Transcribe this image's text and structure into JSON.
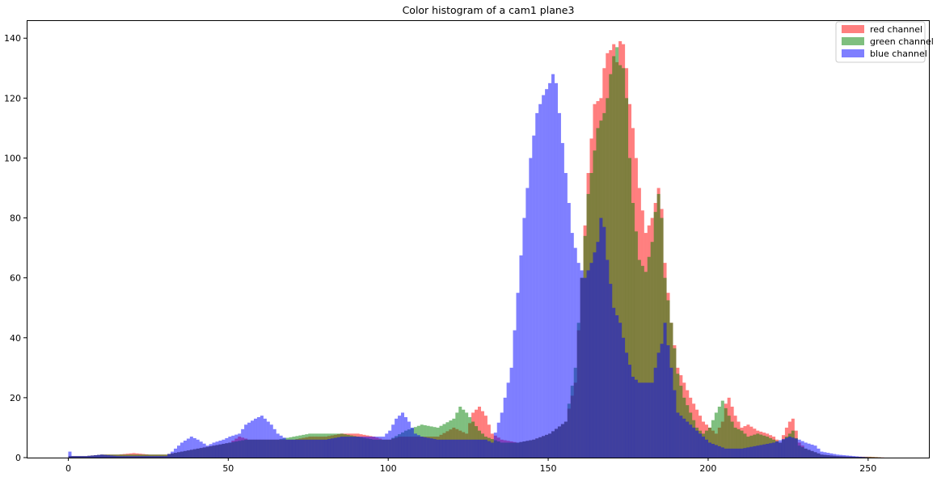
{
  "chart_data": {
    "type": "histogram",
    "title": "Color histogram of a cam1 plane3",
    "xlabel": "",
    "ylabel": "",
    "xlim": [
      -13,
      269
    ],
    "ylim": [
      0,
      146
    ],
    "xticks": [
      0,
      50,
      100,
      150,
      200,
      250
    ],
    "yticks": [
      0,
      20,
      40,
      60,
      80,
      100,
      120,
      140
    ],
    "bin_width": 1,
    "legend_placement": "top-right",
    "grid": false,
    "series": [
      {
        "name": "red channel",
        "color": "#ff0000",
        "alpha": 0.5,
        "x": [
          0,
          5,
          10,
          15,
          20,
          25,
          30,
          35,
          40,
          45,
          50,
          53,
          56,
          60,
          65,
          70,
          75,
          80,
          85,
          90,
          95,
          98,
          100,
          103,
          105,
          110,
          115,
          120,
          124,
          126,
          128,
          130,
          132,
          135,
          140,
          145,
          150,
          155,
          158,
          160,
          162,
          164,
          166,
          167,
          168,
          169,
          170,
          171,
          172,
          173,
          174,
          175,
          176,
          178,
          180,
          182,
          183,
          184,
          185,
          186,
          187,
          188,
          190,
          192,
          194,
          196,
          198,
          200,
          202,
          204,
          205,
          206,
          208,
          210,
          212,
          215,
          218,
          220,
          222,
          224,
          225,
          226,
          228,
          230,
          235,
          240,
          245,
          250,
          255
        ],
        "values": [
          0.5,
          0.5,
          1,
          1,
          1.5,
          1,
          1,
          2,
          3,
          4,
          5,
          7,
          6,
          6,
          6,
          6,
          7,
          7,
          8,
          8,
          7,
          6,
          6,
          7,
          7,
          7,
          7,
          10,
          8,
          15,
          17,
          14,
          8,
          6,
          5,
          6,
          8,
          12,
          25,
          60,
          95,
          118,
          120,
          130,
          135,
          136,
          138,
          132,
          139,
          138,
          130,
          118,
          110,
          90,
          75,
          80,
          85,
          90,
          83,
          65,
          55,
          45,
          30,
          25,
          20,
          16,
          12,
          10,
          8,
          12,
          18,
          20,
          14,
          10,
          11,
          9,
          8,
          7,
          5,
          10,
          12,
          13,
          5,
          3,
          1,
          0.5,
          0.3,
          0.3,
          0
        ]
      },
      {
        "name": "green channel",
        "color": "#008000",
        "alpha": 0.5,
        "x": [
          0,
          5,
          10,
          15,
          20,
          25,
          30,
          35,
          40,
          45,
          50,
          55,
          60,
          65,
          70,
          75,
          80,
          85,
          90,
          95,
          100,
          105,
          110,
          115,
          120,
          122,
          124,
          126,
          128,
          130,
          135,
          140,
          145,
          150,
          155,
          158,
          160,
          162,
          163,
          165,
          167,
          168,
          169,
          170,
          171,
          172,
          173,
          174,
          175,
          176,
          178,
          180,
          182,
          183,
          184,
          185,
          186,
          188,
          190,
          192,
          194,
          196,
          198,
          200,
          202,
          204,
          206,
          208,
          210,
          212,
          215,
          218,
          220,
          222,
          224,
          225,
          226,
          228,
          230,
          235,
          240,
          245,
          250,
          255
        ],
        "values": [
          0.5,
          0.5,
          1,
          1,
          1,
          1,
          1,
          2,
          3,
          4,
          5,
          6,
          6,
          6,
          7,
          8,
          8,
          8,
          7,
          6,
          6,
          9,
          11,
          10,
          13,
          17,
          15,
          12,
          9,
          7,
          5,
          5,
          6,
          8,
          12,
          30,
          60,
          88,
          95,
          110,
          115,
          120,
          128,
          134,
          137,
          131,
          130,
          120,
          100,
          85,
          66,
          62,
          72,
          82,
          88,
          80,
          60,
          45,
          28,
          20,
          15,
          10,
          8,
          10,
          15,
          19,
          14,
          10,
          9,
          7,
          8,
          7,
          6,
          5,
          7,
          8,
          9,
          4,
          3,
          1,
          0.5,
          0.3,
          0.2,
          0
        ]
      },
      {
        "name": "blue channel",
        "color": "#0000ff",
        "alpha": 0.5,
        "x": [
          0,
          1,
          5,
          10,
          15,
          20,
          25,
          30,
          32,
          35,
          38,
          40,
          43,
          45,
          48,
          50,
          53,
          55,
          58,
          60,
          63,
          65,
          68,
          70,
          75,
          80,
          85,
          90,
          95,
          98,
          100,
          102,
          104,
          106,
          108,
          110,
          115,
          120,
          125,
          130,
          132,
          135,
          138,
          140,
          142,
          144,
          146,
          148,
          150,
          151,
          152,
          153,
          155,
          157,
          159,
          161,
          163,
          165,
          166,
          167,
          168,
          170,
          172,
          174,
          176,
          178,
          180,
          182,
          184,
          185,
          186,
          188,
          190,
          195,
          200,
          205,
          210,
          215,
          220,
          225,
          228,
          230,
          233,
          235,
          240,
          245,
          250,
          255
        ],
        "values": [
          2,
          0.5,
          0.5,
          1,
          0.5,
          0.5,
          0.5,
          0.5,
          2,
          5,
          7,
          6,
          4,
          5,
          6,
          7,
          8,
          11,
          13,
          14,
          11,
          8,
          6,
          6,
          6,
          6,
          7,
          7,
          7,
          7,
          9,
          13,
          15,
          12,
          8,
          7,
          6,
          6,
          6,
          6,
          5,
          15,
          30,
          55,
          80,
          100,
          115,
          121,
          125,
          128,
          125,
          115,
          95,
          75,
          65,
          60,
          65,
          72,
          80,
          77,
          66,
          50,
          45,
          35,
          27,
          25,
          25,
          25,
          35,
          38,
          45,
          30,
          15,
          10,
          5,
          3,
          3,
          4,
          5,
          7,
          6,
          5,
          4,
          2,
          1,
          0.5,
          0,
          0
        ]
      }
    ]
  }
}
